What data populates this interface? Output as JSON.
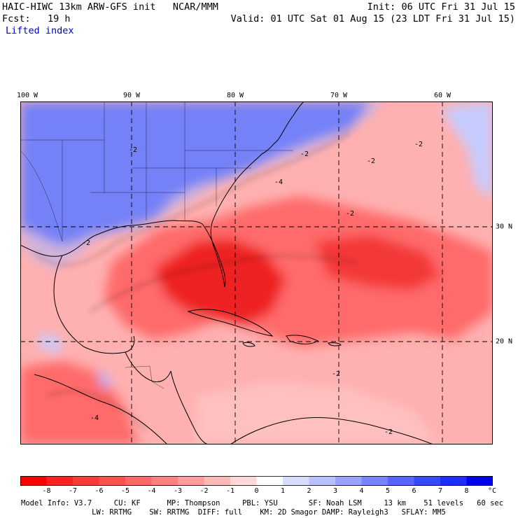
{
  "header": {
    "line1_left": "HAIC-HIWC 13km ARW-GFS init   NCAR/MMM",
    "line1_right": "Init: 06 UTC Fri 31 Jul 15",
    "line2_left": "Fcst:   19 h",
    "line2_right": "Valid: 01 UTC Sat 01 Aug 15 (23 LDT Fri 31 Jul 15)",
    "field_name": "Lifted index"
  },
  "map": {
    "lon_labels": [
      "100 W",
      "90 W",
      "80 W",
      "70 W",
      "60 W"
    ],
    "lat_labels": [
      "30 N",
      "20 N"
    ],
    "contour_labels": [
      "-2",
      "-4"
    ],
    "colors": {
      "deep_blue": "#3344ee",
      "light_blue": "#aab4ff",
      "light_red": "#ffb0b0",
      "medium_red": "#ff6a6a",
      "strong_red": "#ee2222"
    }
  },
  "colorbar": {
    "ticks": [
      "-8",
      "-7",
      "-6",
      "-5",
      "-4",
      "-3",
      "-2",
      "-1",
      "0",
      "1",
      "2",
      "3",
      "4",
      "5",
      "6",
      "7",
      "8"
    ],
    "unit": "°C",
    "colors": [
      "#ff0000",
      "#ff2020",
      "#ff3838",
      "#ff5050",
      "#ff6868",
      "#ff8080",
      "#ff9c9c",
      "#ffb8b8",
      "#ffd8d8",
      "#ffffff",
      "#d8dcff",
      "#b8c0ff",
      "#98a2ff",
      "#7884ff",
      "#5866ff",
      "#3848ff",
      "#1e2cff",
      "#0000ee"
    ]
  },
  "model_info": {
    "line1": "Model Info: V3.7     CU: KF      MP: Thompson     PBL: YSU       SF: Noah LSM     13 km    51 levels   60 sec",
    "line2": "                LW: RRTMG    SW: RRTMG  DIFF: full    KM: 2D Smagor DAMP: Rayleigh3   SFLAY: MM5"
  }
}
